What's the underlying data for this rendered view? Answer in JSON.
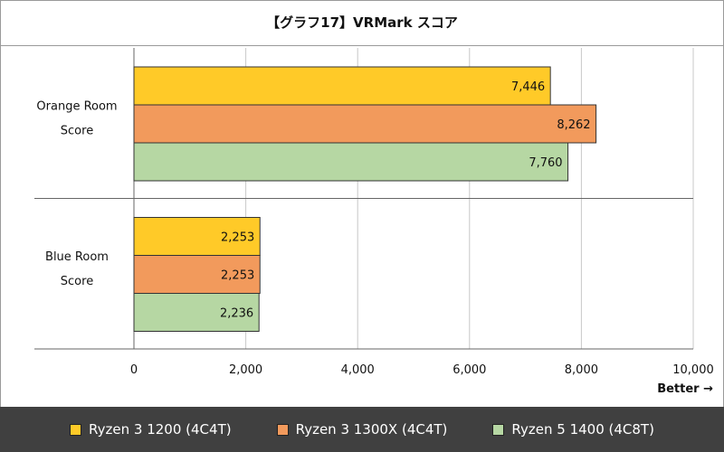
{
  "chart_data": {
    "type": "bar",
    "orientation": "horizontal",
    "title": "【グラフ17】VRMark スコア",
    "categories": [
      "Orange Room Score",
      "Blue Room Score"
    ],
    "category_lines": [
      [
        "Orange Room",
        "Score"
      ],
      [
        "Blue Room",
        "Score"
      ]
    ],
    "series": [
      {
        "name": "Ryzen 3 1200 (4C4T)",
        "color": "#ffca28",
        "values": [
          7446,
          2253
        ],
        "labels": [
          "7,446",
          "2,253"
        ]
      },
      {
        "name": "Ryzen 3 1300X (4C4T)",
        "color": "#f29a5c",
        "values": [
          8262,
          2253
        ],
        "labels": [
          "8,262",
          "2,253"
        ]
      },
      {
        "name": "Ryzen 5 1400 (4C8T)",
        "color": "#b6d7a3",
        "values": [
          7760,
          2236
        ],
        "labels": [
          "7,760",
          "2,236"
        ]
      }
    ],
    "xlim": [
      0,
      10000
    ],
    "xticks": [
      0,
      2000,
      4000,
      6000,
      8000,
      10000
    ],
    "xtick_labels": [
      "0",
      "2,000",
      "4,000",
      "6,000",
      "8,000",
      "10,000"
    ],
    "xlabel": "",
    "ylabel": "",
    "grid": true,
    "legend_position": "bottom",
    "annotation": "Better →"
  }
}
